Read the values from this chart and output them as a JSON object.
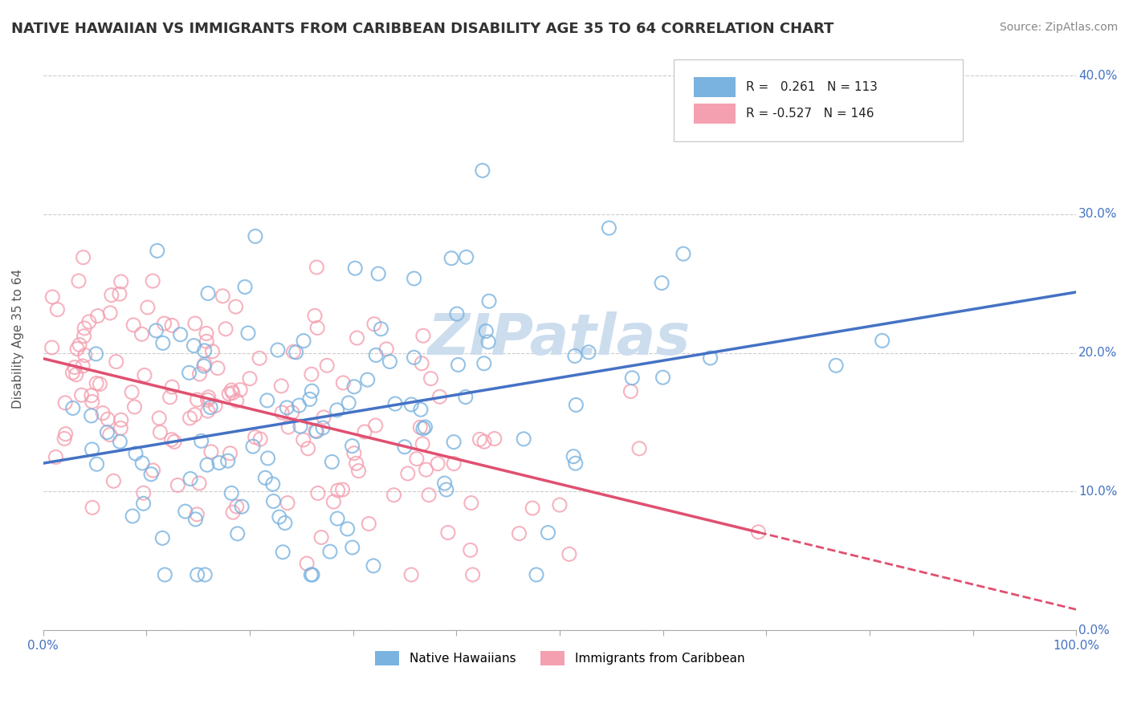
{
  "title": "NATIVE HAWAIIAN VS IMMIGRANTS FROM CARIBBEAN DISABILITY AGE 35 TO 64 CORRELATION CHART",
  "source_text": "Source: ZipAtlas.com",
  "ylabel": "Disability Age 35 to 64",
  "xlabel": "",
  "blue_R": 0.261,
  "blue_N": 113,
  "pink_R": -0.527,
  "pink_N": 146,
  "blue_label": "Native Hawaiians",
  "pink_label": "Immigrants from Caribbean",
  "title_color": "#333333",
  "source_color": "#888888",
  "blue_scatter_color": "#7ab3e0",
  "blue_line_color": "#4472c4",
  "pink_scatter_color": "#f4a0b0",
  "pink_line_color": "#e05070",
  "background_color": "#ffffff",
  "watermark_color": "#ccddee",
  "grid_color": "#cccccc",
  "axis_label_color": "#4472c4",
  "xlim": [
    0.0,
    1.0
  ],
  "ylim": [
    0.0,
    0.42
  ],
  "blue_seed": 42,
  "pink_seed": 123
}
